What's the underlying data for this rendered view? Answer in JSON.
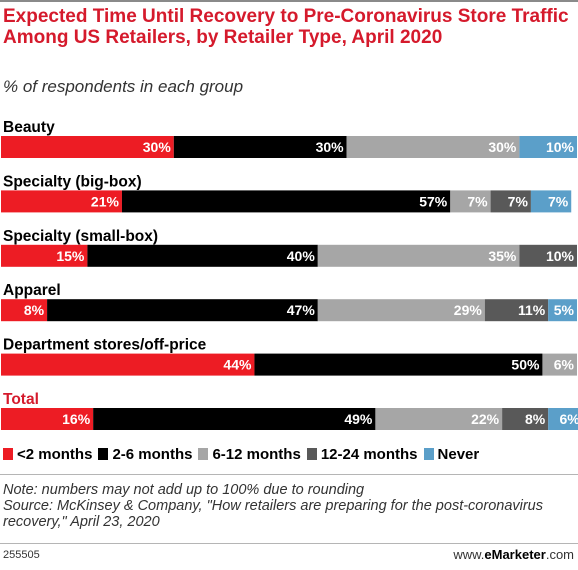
{
  "header": {
    "title": "Expected Time Until Recovery to Pre-Coronavirus Store Traffic Among US Retailers, by Retailer Type, April 2020",
    "subtitle": "% of respondents in each group"
  },
  "colors": {
    "under_2_months": "#ed1c24",
    "2_6_months": "#000000",
    "6_12_months": "#a6a6a6",
    "12_24_months": "#595959",
    "never": "#5b9fc9",
    "total_label": "#d51a2c"
  },
  "chart_data": {
    "type": "bar",
    "orientation": "horizontal",
    "stacked": true,
    "title": "Expected Time Until Recovery to Pre-Coronavirus Store Traffic Among US Retailers, by Retailer Type, April 2020",
    "subtitle": "% of respondents in each group",
    "categories": [
      "Beauty",
      "Specialty (big-box)",
      "Specialty (small-box)",
      "Apparel",
      "Department stores/off-price",
      "Total"
    ],
    "series": [
      {
        "name": "<2 months",
        "color": "#ed1c24",
        "values": [
          30,
          21,
          15,
          8,
          44,
          16
        ]
      },
      {
        "name": "2-6 months",
        "color": "#000000",
        "values": [
          30,
          57,
          40,
          47,
          50,
          49
        ]
      },
      {
        "name": "6-12 months",
        "color": "#a6a6a6",
        "values": [
          30,
          7,
          35,
          29,
          6,
          22
        ]
      },
      {
        "name": "12-24 months",
        "color": "#595959",
        "values": [
          null,
          7,
          10,
          11,
          null,
          8
        ]
      },
      {
        "name": "Never",
        "color": "#5b9fc9",
        "values": [
          10,
          7,
          null,
          5,
          null,
          6
        ]
      }
    ],
    "value_suffix": "%",
    "xlim": [
      0,
      100
    ],
    "legend_position": "bottom",
    "grid": false
  },
  "legend": {
    "items": [
      "<2 months",
      "2-6 months",
      "6-12 months",
      "12-24 months",
      "Never"
    ]
  },
  "footnote": {
    "note": "Note: numbers may not add up to 100% due to rounding",
    "source": "Source: McKinsey & Company, \"How retailers are preparing for the post-coronavirus recovery,\" April 23, 2020"
  },
  "footer": {
    "chart_id": "255505",
    "brand_prefix": "www.",
    "brand_name": "eMarketer",
    "brand_suffix": ".com"
  }
}
